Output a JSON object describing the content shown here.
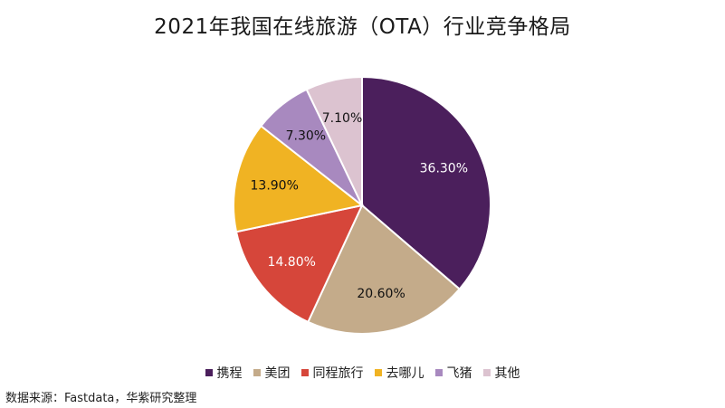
{
  "chart_data": {
    "type": "pie",
    "title": "2021年我国在线旅游（OTA）行业竞争格局",
    "categories": [
      "携程",
      "美团",
      "同程旅行",
      "去哪儿",
      "飞猪",
      "其他"
    ],
    "values": [
      36.3,
      20.6,
      14.8,
      13.9,
      7.3,
      7.1
    ],
    "labels": [
      "36.30%",
      "20.60%",
      "14.80%",
      "13.90%",
      "7.30%",
      "7.10%"
    ],
    "colors": [
      "#4b1f5c",
      "#c4ab8a",
      "#d6463a",
      "#f0b323",
      "#a889bf",
      "#dcc3d0"
    ],
    "legend_position": "bottom",
    "start_angle_deg": 0,
    "direction": "clockwise"
  },
  "footer": {
    "source": "数据来源：Fastdata，华紫研究整理"
  }
}
